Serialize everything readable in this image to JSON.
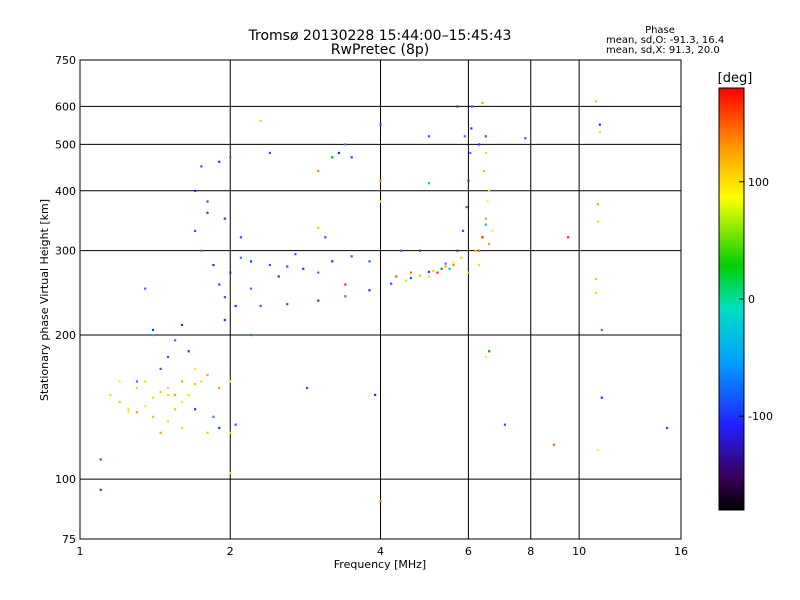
{
  "chart_data": {
    "type": "scatter",
    "title": "Tromsø 20130228 15:44:00–15:45:43",
    "subtitle": "RwPretec (8p)",
    "xlabel": "Frequency [MHz]",
    "ylabel": "Stationary phase Virtual Height [km]",
    "x_scale": "log",
    "y_scale": "log",
    "xlim": [
      1,
      16
    ],
    "ylim": [
      75,
      750
    ],
    "x_ticks": [
      1,
      2,
      4,
      6,
      8,
      10,
      16
    ],
    "x_tick_labels": [
      "1",
      "2",
      "4",
      "6",
      "8",
      "10",
      "16"
    ],
    "y_ticks": [
      75,
      100,
      200,
      300,
      400,
      500,
      600,
      750
    ],
    "y_tick_labels": [
      "75",
      "100",
      "200",
      "300",
      "400",
      "500",
      "600",
      "750"
    ],
    "grid": true,
    "phase_box": {
      "title": "Phase",
      "line1": "mean, sd,O: -91.3, 16.4",
      "line2": "mean, sd,X:  91.3, 20.0"
    },
    "colorbar": {
      "label": "[deg]",
      "range": [
        -180,
        180
      ],
      "ticks": [
        100,
        0,
        -100
      ],
      "tick_labels": [
        "100",
        "0",
        "-100"
      ]
    },
    "series": [
      {
        "points": [
          [
            2.05,
            230
          ],
          [
            2.3,
            230
          ],
          [
            2.6,
            232
          ],
          [
            3.0,
            236
          ],
          [
            3.4,
            241
          ],
          [
            3.8,
            248
          ],
          [
            4.2,
            256
          ],
          [
            4.6,
            263
          ],
          [
            5.0,
            271
          ],
          [
            5.4,
            282
          ],
          [
            5.7,
            300
          ],
          [
            5.85,
            330
          ],
          [
            5.95,
            370
          ],
          [
            6.0,
            420
          ],
          [
            6.05,
            480
          ],
          [
            6.08,
            540
          ],
          [
            6.1,
            600
          ],
          [
            1.7,
            330
          ],
          [
            1.8,
            360
          ],
          [
            1.75,
            300
          ],
          [
            1.85,
            280
          ],
          [
            1.9,
            255
          ],
          [
            1.95,
            240
          ],
          [
            2.0,
            270
          ],
          [
            2.1,
            290
          ],
          [
            2.2,
            285
          ],
          [
            2.4,
            280
          ],
          [
            2.6,
            278
          ],
          [
            2.8,
            275
          ],
          [
            3.0,
            270
          ],
          [
            3.2,
            285
          ],
          [
            3.5,
            292
          ],
          [
            3.8,
            285
          ],
          [
            1.6,
            210
          ],
          [
            1.55,
            195
          ],
          [
            1.65,
            185
          ],
          [
            1.5,
            180
          ],
          [
            1.45,
            170
          ],
          [
            1.4,
            205
          ],
          [
            1.35,
            250
          ],
          [
            1.7,
            400
          ],
          [
            1.75,
            450
          ],
          [
            1.8,
            380
          ],
          [
            1.9,
            460
          ],
          [
            2.0,
            470
          ],
          [
            1.95,
            350
          ],
          [
            2.1,
            320
          ],
          [
            2.05,
            130
          ],
          [
            1.9,
            128
          ],
          [
            1.85,
            135
          ],
          [
            1.7,
            140
          ],
          [
            2.4,
            480
          ],
          [
            3.1,
            320
          ],
          [
            3.3,
            480
          ],
          [
            3.4,
            500
          ],
          [
            3.5,
            470
          ],
          [
            4.0,
            550
          ],
          [
            5.0,
            520
          ],
          [
            5.7,
            600
          ],
          [
            5.9,
            520
          ],
          [
            6.3,
            500
          ],
          [
            6.5,
            520
          ],
          [
            1.1,
            110
          ],
          [
            1.1,
            95
          ],
          [
            1.3,
            160
          ],
          [
            4.8,
            300
          ],
          [
            4.4,
            300
          ],
          [
            2.7,
            295
          ],
          [
            2.5,
            265
          ],
          [
            2.2,
            250
          ],
          [
            1.95,
            215
          ],
          [
            7.1,
            130
          ],
          [
            7.8,
            515
          ],
          [
            11.0,
            550
          ],
          [
            11.1,
            205
          ],
          [
            11.1,
            148
          ],
          [
            15.0,
            128
          ],
          [
            2.85,
            155
          ],
          [
            3.9,
            150
          ]
        ]
      },
      {
        "points": [
          [
            1.15,
            150
          ],
          [
            1.2,
            145
          ],
          [
            1.25,
            140
          ],
          [
            1.3,
            138
          ],
          [
            1.35,
            142
          ],
          [
            1.4,
            148
          ],
          [
            1.45,
            152
          ],
          [
            1.5,
            155
          ],
          [
            1.55,
            150
          ],
          [
            1.6,
            145
          ],
          [
            1.65,
            150
          ],
          [
            1.7,
            158
          ],
          [
            1.75,
            160
          ],
          [
            1.8,
            165
          ],
          [
            1.2,
            160
          ],
          [
            1.3,
            155
          ],
          [
            1.4,
            135
          ],
          [
            1.5,
            132
          ],
          [
            1.6,
            160
          ],
          [
            1.7,
            170
          ],
          [
            4.5,
            260
          ],
          [
            4.8,
            266
          ],
          [
            5.1,
            272
          ],
          [
            5.4,
            278
          ],
          [
            5.6,
            283
          ],
          [
            5.8,
            290
          ],
          [
            6.2,
            300
          ],
          [
            6.4,
            320
          ],
          [
            6.5,
            350
          ],
          [
            6.55,
            380
          ],
          [
            6.6,
            400
          ],
          [
            6.45,
            440
          ],
          [
            6.5,
            480
          ],
          [
            6.6,
            310
          ],
          [
            6.7,
            330
          ],
          [
            6.3,
            280
          ],
          [
            6.0,
            270
          ],
          [
            5.0,
            265
          ],
          [
            4.0,
            420
          ],
          [
            4.0,
            380
          ],
          [
            1.5,
            150
          ],
          [
            1.55,
            140
          ],
          [
            1.6,
            128
          ],
          [
            1.9,
            155
          ],
          [
            2.0,
            160
          ],
          [
            2.3,
            560
          ],
          [
            1.8,
            125
          ],
          [
            2.0,
            125
          ],
          [
            1.45,
            125
          ],
          [
            1.25,
            138
          ],
          [
            1.35,
            160
          ],
          [
            10.8,
            615
          ],
          [
            10.9,
            345
          ],
          [
            10.9,
            375
          ],
          [
            10.9,
            115
          ],
          [
            10.8,
            245
          ],
          [
            10.8,
            262
          ],
          [
            11.0,
            530
          ],
          [
            6.4,
            610
          ],
          [
            6.5,
            180
          ],
          [
            2.0,
            103
          ],
          [
            3.0,
            335
          ]
        ]
      },
      {
        "points": [
          [
            6.3,
            300
          ],
          [
            6.4,
            320
          ],
          [
            6.5,
            340
          ],
          [
            5.3,
            275
          ],
          [
            5.6,
            280
          ],
          [
            4.6,
            270
          ],
          [
            5.2,
            270
          ],
          [
            5.5,
            275
          ],
          [
            6.6,
            185
          ],
          [
            4.0,
            90
          ],
          [
            8.9,
            118
          ],
          [
            9.5,
            320
          ],
          [
            5.0,
            415
          ],
          [
            3.2,
            470
          ],
          [
            3.0,
            440
          ],
          [
            4.3,
            265
          ],
          [
            3.4,
            255
          ],
          [
            1.4,
            200
          ],
          [
            2.2,
            200
          ]
        ]
      }
    ]
  }
}
